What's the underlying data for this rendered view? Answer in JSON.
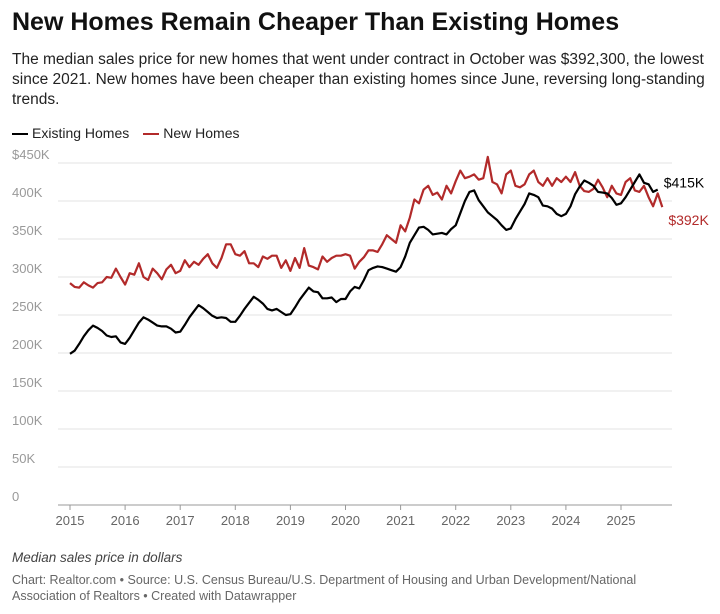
{
  "title": "New Homes Remain Cheaper Than Existing Homes",
  "subtitle": "The median sales price for new homes that went under contract in October was $392,300, the lowest since 2021. New homes have been cheaper than existing homes since June, reversing long-standing trends.",
  "note": "Median sales price in dollars",
  "source": "Chart: Realtor.com • Source: U.S. Census Bureau/U.S. Department of Housing and Urban Development/National Association of Realtors • Created with Datawrapper",
  "chart_data": {
    "type": "line",
    "x_start": "2015-01",
    "x_frequency": "monthly",
    "xticks": [
      "2015",
      "2016",
      "2017",
      "2018",
      "2019",
      "2020",
      "2021",
      "2022",
      "2023",
      "2024",
      "2025"
    ],
    "yticks": [
      "0",
      "50K",
      "100K",
      "150K",
      "200K",
      "250K",
      "300K",
      "350K",
      "400K",
      "$450K"
    ],
    "ylim": [
      0,
      450
    ],
    "grid": true,
    "legend": "top-left",
    "series": [
      {
        "name": "Existing Homes",
        "color": "#000000",
        "end_label": "$415K",
        "values": [
          199,
          203,
          212,
          222,
          230,
          236,
          233,
          229,
          223,
          221,
          222,
          214,
          212,
          220,
          230,
          240,
          247,
          244,
          240,
          236,
          235,
          235,
          232,
          227,
          228,
          237,
          247,
          255,
          263,
          259,
          254,
          249,
          246,
          247,
          246,
          241,
          241,
          249,
          258,
          266,
          274,
          270,
          265,
          258,
          256,
          258,
          254,
          250,
          251,
          260,
          270,
          278,
          286,
          281,
          280,
          272,
          272,
          273,
          267,
          271,
          271,
          281,
          287,
          285,
          296,
          309,
          312,
          314,
          313,
          311,
          309,
          307,
          313,
          327,
          345,
          355,
          365,
          366,
          362,
          356,
          357,
          358,
          356,
          363,
          368,
          384,
          400,
          412,
          414,
          401,
          393,
          385,
          380,
          375,
          368,
          362,
          364,
          376,
          386,
          396,
          410,
          408,
          405,
          394,
          393,
          390,
          383,
          380,
          383,
          393,
          409,
          419,
          427,
          424,
          420,
          412,
          411,
          410,
          404,
          395,
          397,
          405,
          415,
          425,
          435,
          424,
          422,
          412,
          415
        ]
      },
      {
        "name": "New Homes",
        "color": "#b22a2a",
        "end_label": "$392K",
        "values": [
          292,
          287,
          286,
          293,
          289,
          286,
          292,
          293,
          300,
          299,
          311,
          300,
          290,
          305,
          303,
          318,
          300,
          296,
          311,
          305,
          297,
          310,
          316,
          305,
          308,
          322,
          313,
          320,
          316,
          324,
          330,
          318,
          312,
          325,
          343,
          343,
          330,
          328,
          334,
          318,
          318,
          313,
          327,
          324,
          328,
          328,
          312,
          322,
          308,
          325,
          312,
          338,
          315,
          313,
          310,
          327,
          320,
          325,
          328,
          328,
          330,
          328,
          311,
          320,
          326,
          335,
          335,
          333,
          343,
          355,
          350,
          345,
          368,
          360,
          378,
          402,
          397,
          415,
          420,
          408,
          411,
          402,
          420,
          410,
          426,
          440,
          430,
          432,
          435,
          428,
          430,
          458,
          425,
          422,
          410,
          435,
          440,
          420,
          418,
          422,
          435,
          440,
          425,
          420,
          430,
          420,
          430,
          425,
          432,
          425,
          438,
          420,
          413,
          412,
          416,
          428,
          418,
          405,
          420,
          410,
          408,
          425,
          430,
          414,
          412,
          420,
          405,
          393,
          410,
          392
        ]
      }
    ]
  }
}
